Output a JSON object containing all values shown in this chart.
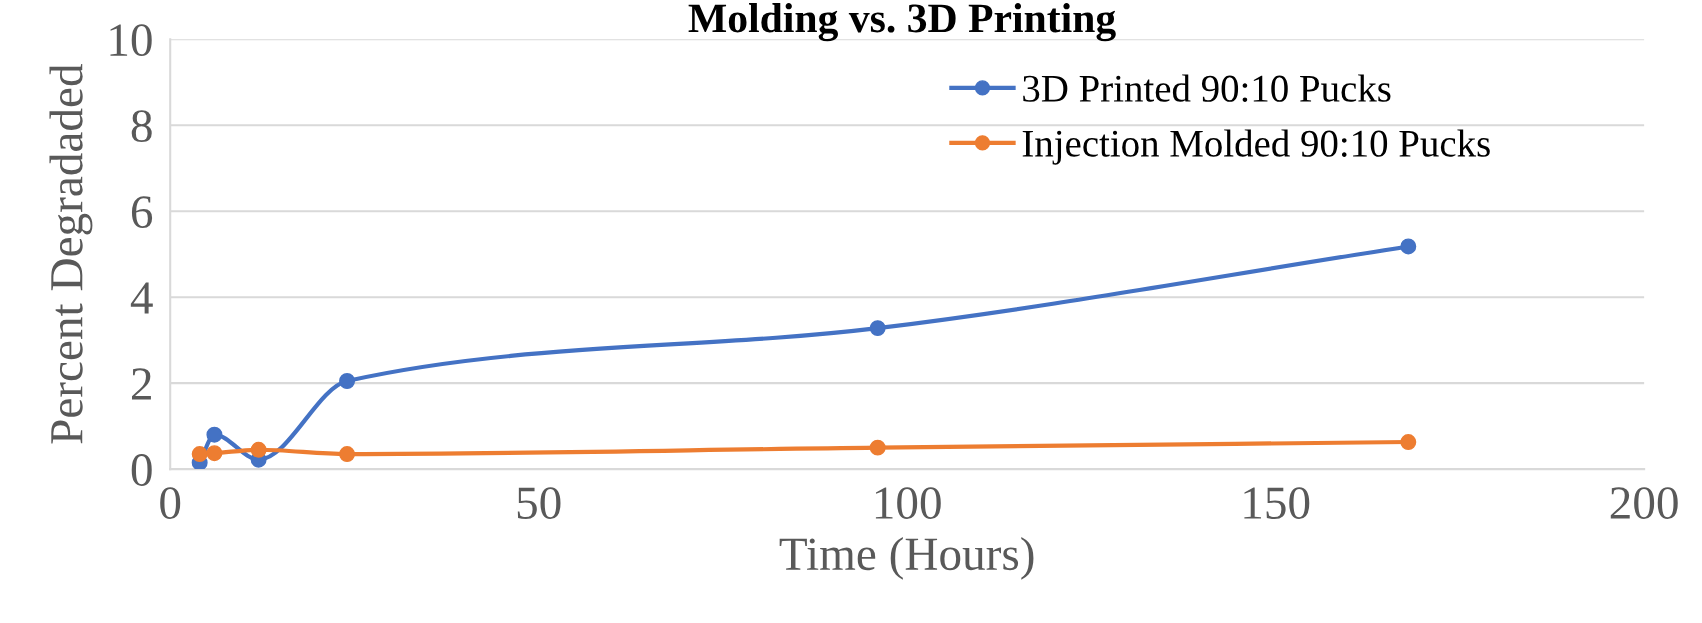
{
  "chart_data": {
    "type": "line",
    "title": "Molding vs. 3D Printing",
    "xlabel": "Time (Hours)",
    "ylabel": "Percent Degradaded",
    "series": [
      {
        "name": "3D Printed 90:10 Pucks",
        "color": "#4472c4",
        "x": [
          4,
          6,
          12,
          24,
          96,
          168
        ],
        "values": [
          0.15,
          0.8,
          0.22,
          2.05,
          3.28,
          5.18
        ]
      },
      {
        "name": "Injection Molded 90:10 Pucks",
        "color": "#ed7d31",
        "x": [
          4,
          6,
          12,
          24,
          96,
          168
        ],
        "values": [
          0.35,
          0.37,
          0.45,
          0.35,
          0.5,
          0.63
        ]
      }
    ],
    "xlim": [
      0,
      200
    ],
    "xticks": [
      0,
      50,
      100,
      150,
      200
    ],
    "ylim": [
      0,
      10
    ],
    "yticks": [
      0,
      2,
      4,
      6,
      8,
      10
    ],
    "grid": "y",
    "legend": "top right",
    "marker": "circle",
    "line_style": "solid"
  }
}
